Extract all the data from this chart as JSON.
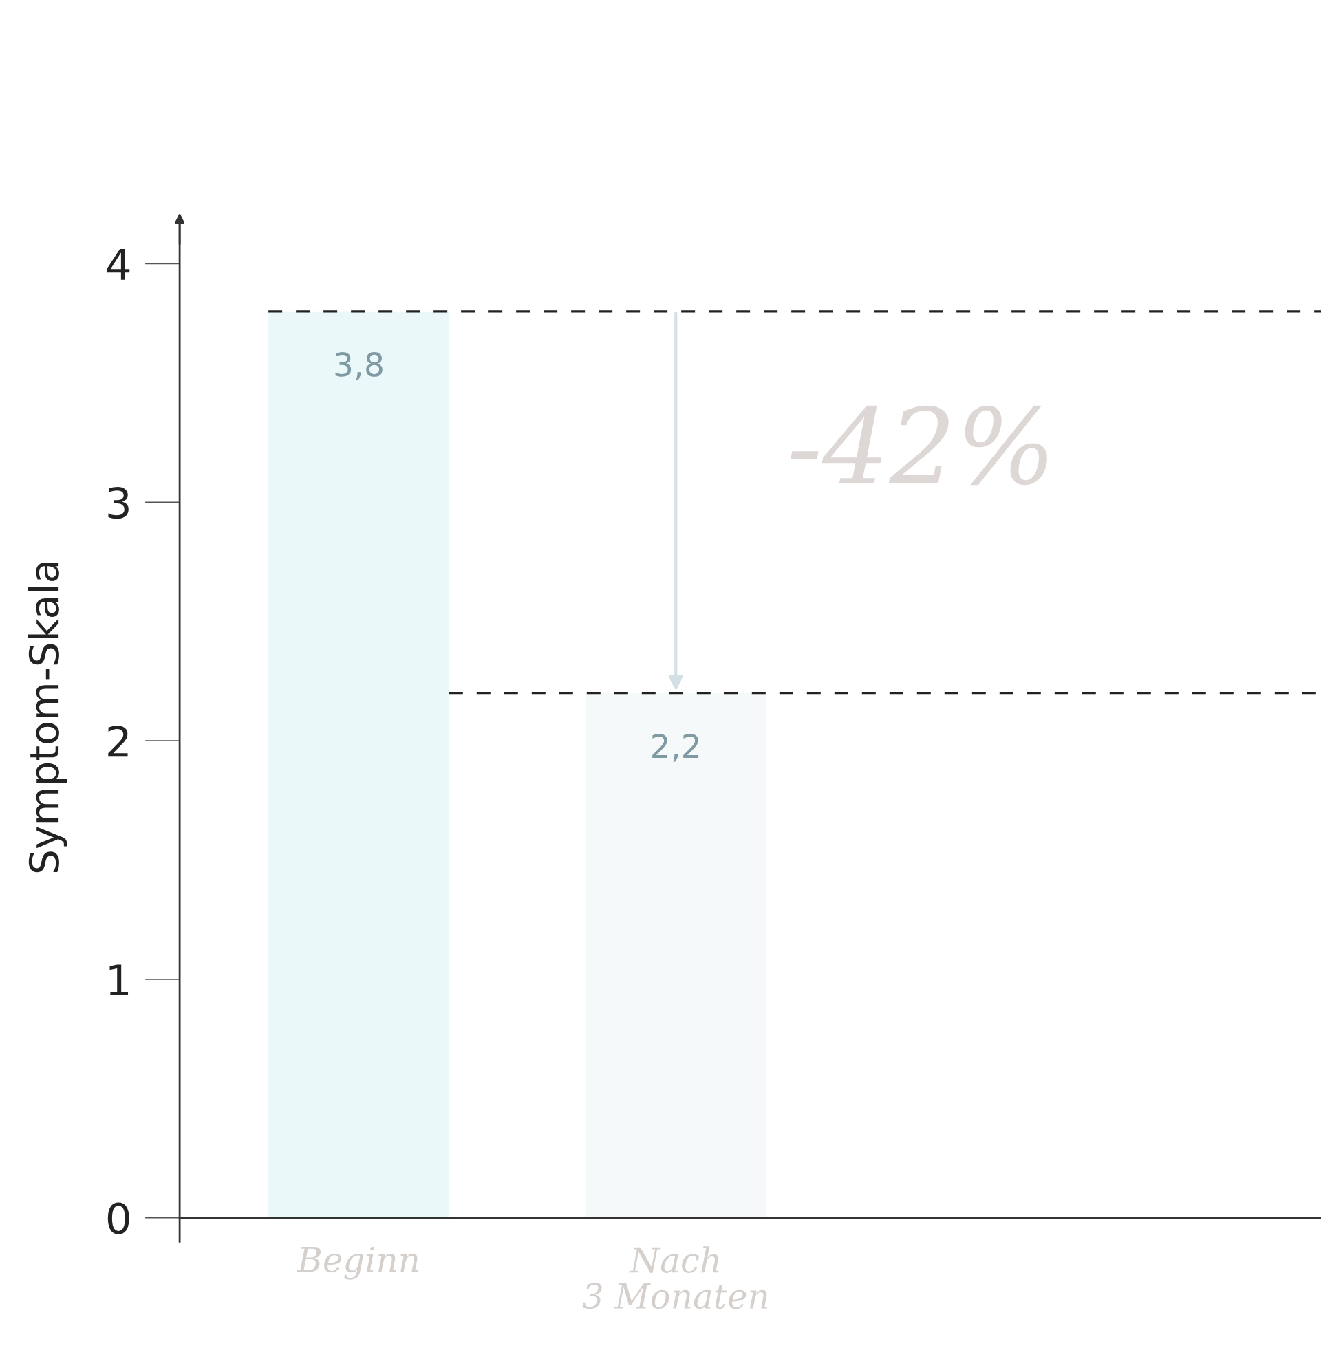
{
  "chart_data": {
    "type": "bar",
    "ylabel": "Symptom-Skala",
    "categories": [
      "Beginn",
      "Nach\n3 Monaten"
    ],
    "values": [
      3.8,
      2.2
    ],
    "colors": [
      "#eaf8fa",
      "#f5f9fa"
    ],
    "value_labels": [
      "3,8",
      "2,2"
    ],
    "ylim": [
      0,
      4.2
    ],
    "yticks": [
      0,
      1,
      2,
      3,
      4
    ],
    "ref_lines": [
      {
        "axis": "y",
        "value": 3.8,
        "color": "#222222",
        "line_style": "dashed"
      },
      {
        "axis": "y",
        "value": 2.2,
        "color": "#222222",
        "line_style": "dashed"
      }
    ],
    "annotations": [
      "-42%"
    ],
    "grid": false,
    "legend": false
  }
}
